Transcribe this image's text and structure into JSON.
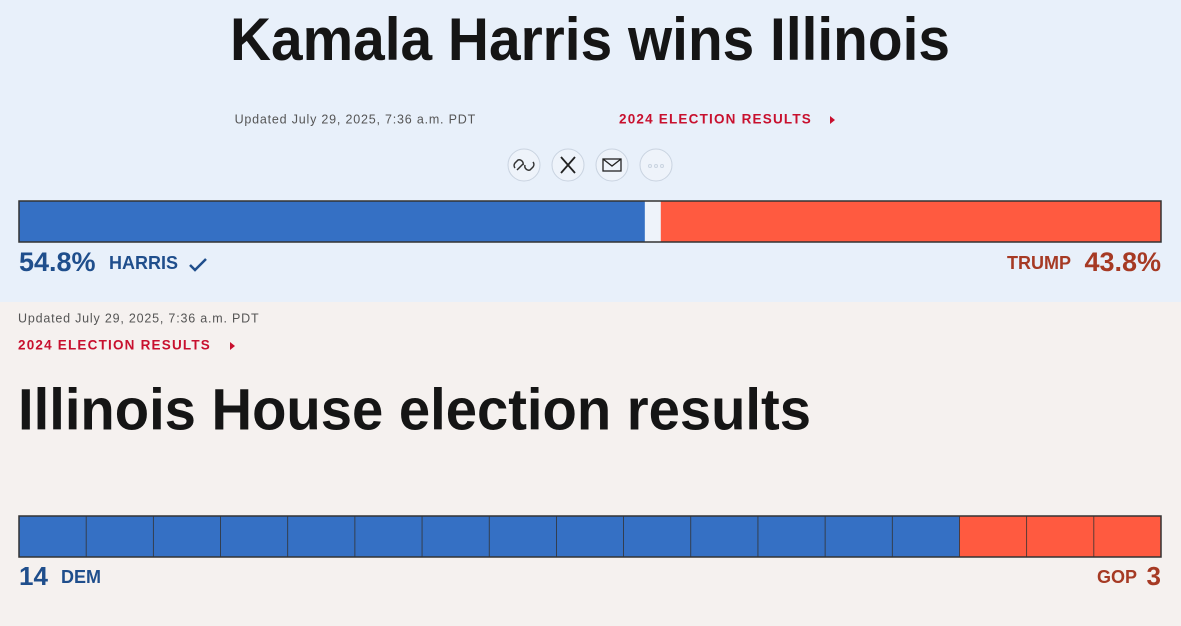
{
  "header": {
    "title": "Kamala Harris wins Illinois",
    "updated": "Updated July 29, 2025, 7:36 a.m. PDT",
    "link": "2024 ELECTION RESULTS"
  },
  "president": {
    "candidates": [
      {
        "name": "HARRIS",
        "value": 54.8,
        "value_label": "54.8%",
        "color": "#3570c4",
        "label_color": "#1f4e8c"
      },
      {
        "name": "TRUMP",
        "value": 43.8,
        "value_label": "43.8%",
        "color": "#ff5a40",
        "label_color": "#a63a24"
      }
    ]
  },
  "house": {
    "updated": "Updated July 29, 2025, 7:36 a.m. PDT",
    "link": "2024 ELECTION RESULTS",
    "title": "Illinois House election results",
    "parties": [
      {
        "name": "DEM",
        "seats": 14,
        "color": "#3570c4",
        "label_color": "#1f4e8c"
      },
      {
        "name": "GOP",
        "seats": 3,
        "color": "#ff5a40",
        "label_color": "#a63a24"
      }
    ]
  }
}
